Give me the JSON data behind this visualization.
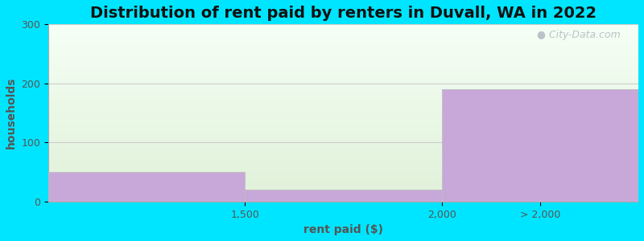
{
  "title": "Distribution of rent paid by renters in Duvall, WA in 2022",
  "xlabel": "rent paid ($)",
  "ylabel": "households",
  "tick_labels": [
    "1,500",
    "2,000",
    "> 2,000"
  ],
  "values": [
    50,
    20,
    190
  ],
  "bar_color": "#c8a8d8",
  "ylim": [
    0,
    300
  ],
  "yticks": [
    0,
    100,
    200,
    300
  ],
  "figure_bg": "#00e5ff",
  "plot_bg_top": "#f5fff5",
  "plot_bg_bottom": "#dff0d8",
  "grid_color": "#cccccc",
  "title_fontsize": 14,
  "axis_label_fontsize": 10,
  "tick_fontsize": 9,
  "watermark": "City-Data.com",
  "title_color": "#111111",
  "label_color": "#555555"
}
